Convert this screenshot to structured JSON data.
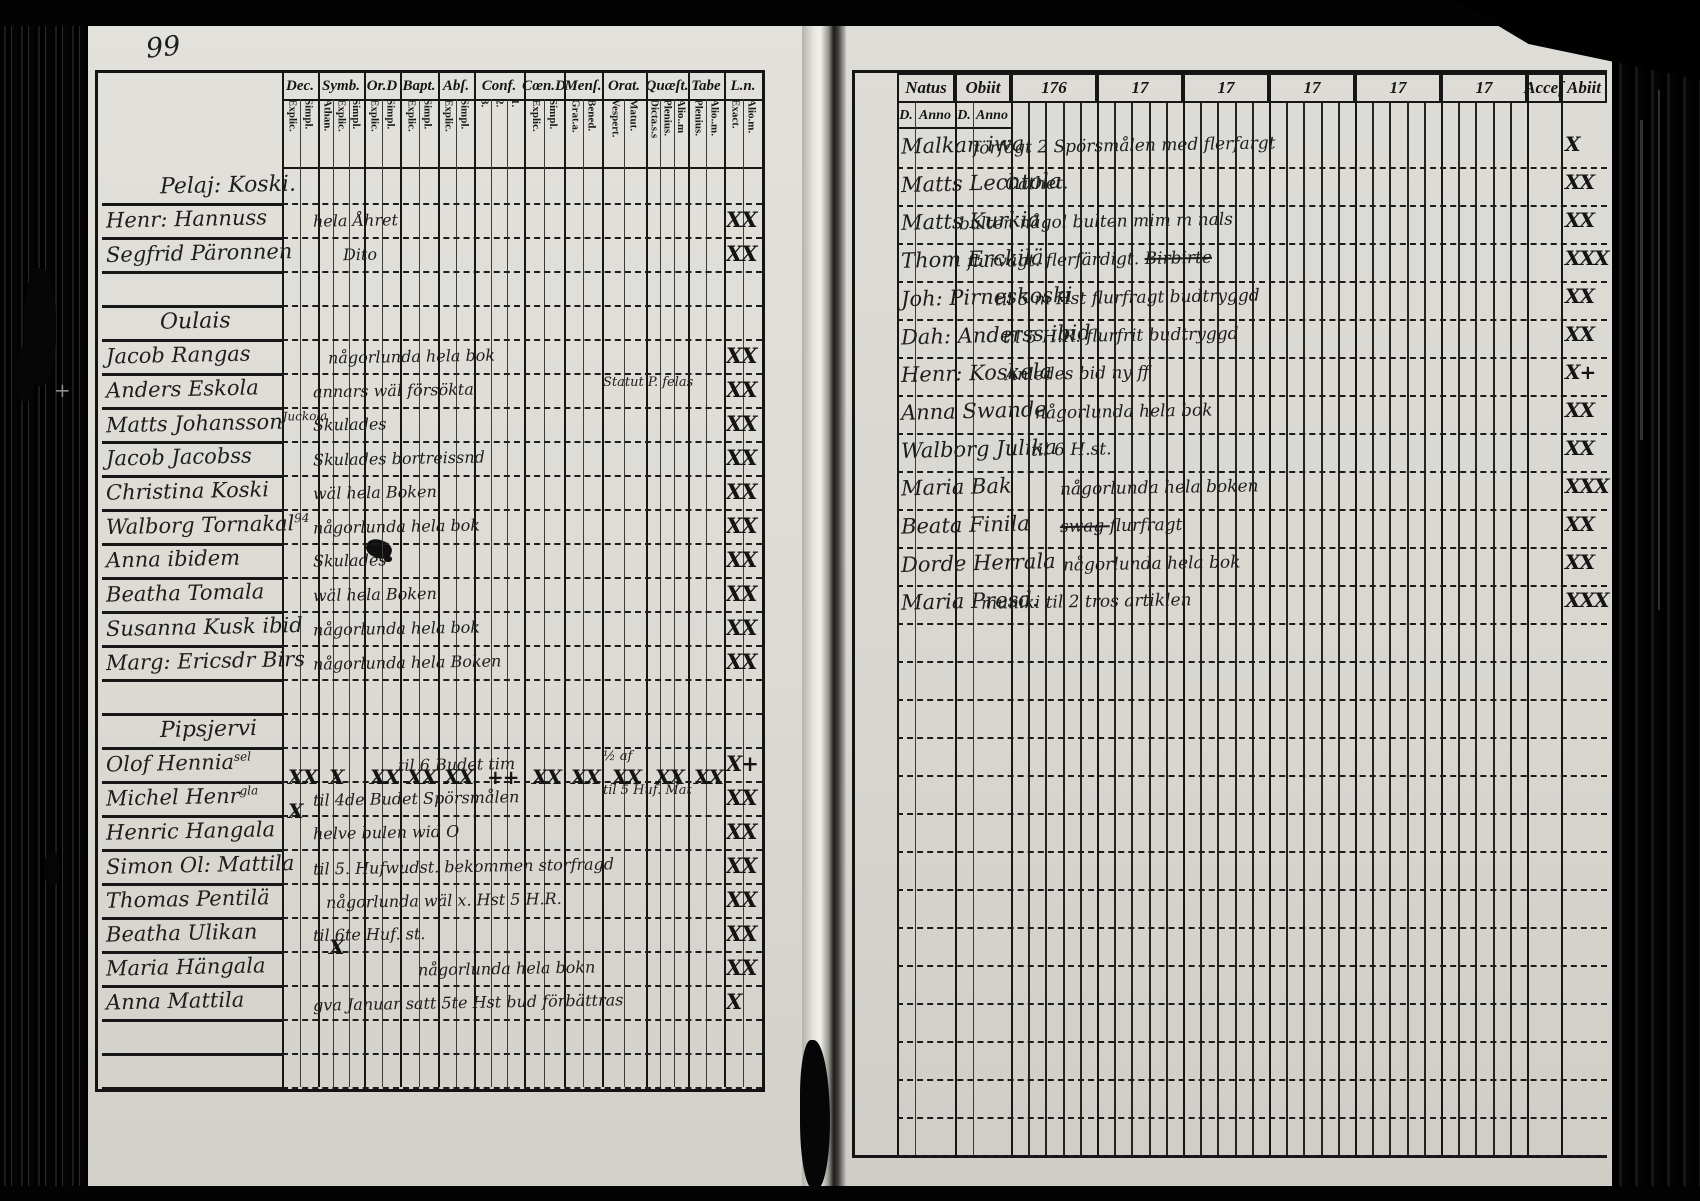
{
  "page_number": "99",
  "left_page": {
    "columns": [
      {
        "label": "Dec.",
        "sub": [
          "Explic.",
          "Simpl."
        ]
      },
      {
        "label": "Symb.",
        "sub": [
          "Athan.",
          "Explic.",
          "Simpl."
        ]
      },
      {
        "label": "Or.D",
        "sub": [
          "Explic.",
          "Simpl."
        ]
      },
      {
        "label": "Bapt.",
        "sub": [
          "Explic.",
          "Simpl."
        ]
      },
      {
        "label": "Abſ.",
        "sub": [
          "Explic.",
          "Simpl."
        ]
      },
      {
        "label": "Conf.",
        "sub": [
          "3.",
          "2.",
          "1."
        ]
      },
      {
        "label": "Cœn.D",
        "sub": [
          "Explic.",
          "Simpl."
        ]
      },
      {
        "label": "Menſ.",
        "sub": [
          "Grat.a.",
          "Bened."
        ]
      },
      {
        "label": "Orat.",
        "sub": [
          "Vespert.",
          "Matut."
        ]
      },
      {
        "label": "Quæſt.",
        "sub": [
          "Dicta.s.s",
          "Plenius.",
          "Alio..m"
        ]
      },
      {
        "label": "Tabe",
        "sub": [
          "Plenius.",
          "Alio..m."
        ]
      },
      {
        "label": "L.n.",
        "sub": [
          "Exact.",
          "Alio.m."
        ]
      }
    ],
    "rows": [
      {
        "type": "heading",
        "name": "Pelaj: Koski."
      },
      {
        "type": "entry",
        "name": "Henr: Hannuss",
        "note": [
          {
            "text": "hela Åhret"
          }
        ],
        "marks": "XX"
      },
      {
        "type": "entry",
        "name": "Segfrid Päronnen",
        "note": [
          {
            "text": "Dito"
          }
        ],
        "marks": "XX"
      },
      {
        "type": "blank"
      },
      {
        "type": "heading",
        "name": "Oulais"
      },
      {
        "type": "entry",
        "name": "Jacob Rangas",
        "note": [
          {
            "text": "någorlunda hela bok"
          }
        ],
        "marks": "XX"
      },
      {
        "type": "entry",
        "name": "Anders Eskola",
        "note": [
          {
            "text": "annars wäl försökta"
          }
        ],
        "note2": "Statut P. felas",
        "marks": "XX"
      },
      {
        "type": "entry",
        "name": "Matts Johansson",
        "sup": "Juckola",
        "note": [
          {
            "text": "Skulades"
          }
        ],
        "marks": "XX"
      },
      {
        "type": "entry",
        "name": "Jacob Jacobss",
        "note": [
          {
            "text": "Skulades  bortreissnd"
          }
        ],
        "marks": "XX"
      },
      {
        "type": "entry",
        "name": "Christina Koski",
        "note": [
          {
            "text": "wäl hela Boken"
          }
        ],
        "marks": "XX"
      },
      {
        "type": "entry",
        "name": "Walborg Tornakal",
        "sup": "94",
        "note": [
          {
            "text": "någorlunda hela bok"
          }
        ],
        "marks": "XX"
      },
      {
        "type": "entry",
        "name": "Anna ibidem",
        "note": [
          {
            "text": "Skulades"
          }
        ],
        "marks": "XX"
      },
      {
        "type": "entry",
        "name": "Beatha Tomala",
        "note": [
          {
            "text": "wäl hela Boken"
          }
        ],
        "marks": "XX"
      },
      {
        "type": "entry",
        "name": "Susanna Kusk ibid",
        "note": [
          {
            "text": "någorlunda hela bok"
          }
        ],
        "marks": "XX"
      },
      {
        "type": "entry",
        "name": "Marg: Ericsdr Birs",
        "note": [
          {
            "text": "någorlunda hela Boken"
          }
        ],
        "marks": "XX"
      },
      {
        "type": "blank"
      },
      {
        "type": "heading",
        "name": "Pipsjervi"
      },
      {
        "type": "entry",
        "name": "Olof Hennia",
        "sup": "sel",
        "note": [
          {
            "text": "til 6 Budet tim"
          }
        ],
        "note2": "½ af",
        "marks": "X+",
        "colmarks": [
          [
            0,
            "XX"
          ],
          [
            1,
            "X"
          ],
          [
            2,
            "XX"
          ],
          [
            3,
            "XX"
          ],
          [
            4,
            "XX"
          ],
          [
            5,
            "++"
          ],
          [
            6,
            "XX"
          ],
          [
            7,
            "XX"
          ],
          [
            8,
            "XX"
          ],
          [
            9,
            "XX"
          ],
          [
            10,
            "XX"
          ]
        ]
      },
      {
        "type": "entry",
        "name": "Michel Henr",
        "sup": "gla",
        "note": [
          {
            "text": "til 4de Budet Spörsmålen"
          }
        ],
        "note2": "til 5 Huf. Mat",
        "marks": "XX",
        "colmarks": [
          [
            0,
            "X"
          ]
        ]
      },
      {
        "type": "entry",
        "name": "Henric Hangala",
        "note": [
          {
            "text": "helve bulen wid O"
          }
        ],
        "marks": "XX"
      },
      {
        "type": "entry",
        "name": "Simon Ol: Mattila",
        "note": [
          {
            "text": "til 5. Hufwudst. bekommen storfragd"
          }
        ],
        "marks": "XX"
      },
      {
        "type": "entry",
        "name": "Thomas Pentilä",
        "note": [
          {
            "text": "någorlunda wäl  x. Hst 5 H.R."
          }
        ],
        "marks": "XX"
      },
      {
        "type": "entry",
        "name": "Beatha Ulikan",
        "note": [
          {
            "text": "til 6te Huf. st."
          }
        ],
        "marks": "XX",
        "colmarks": [
          [
            1,
            "X"
          ]
        ]
      },
      {
        "type": "entry",
        "name": "Maria Hängala",
        "note": [
          {
            "text": "någorlunda hela bokn"
          }
        ],
        "marks": "XX"
      },
      {
        "type": "entry",
        "name": "Anna Mattila",
        "note": [
          {
            "text": "gva Januar satt 5te Hst bud förbättras"
          }
        ],
        "marks": "X"
      },
      {
        "type": "blank"
      },
      {
        "type": "blank"
      }
    ]
  },
  "right_page": {
    "header": {
      "natus": "Natus",
      "obiit": "Obiit",
      "d": "D.",
      "anno": "Anno",
      "years": [
        "176",
        "17",
        "17",
        "17",
        "17",
        "17"
      ],
      "accel": "Acceſ",
      "abit": "Abiit"
    },
    "rows": [
      {
        "name": "Malkan iwa",
        "note": [
          {
            "text": "förfögt 2 Spörsmålen med flerfargt"
          }
        ],
        "marks": "X"
      },
      {
        "name": "Matts Lechtola",
        "note": [
          {
            "text": "Cathet."
          }
        ],
        "marks": "XX"
      },
      {
        "name": "Matts Kurkia",
        "note": [
          {
            "text": "bulten   någol bulten mim m nals"
          }
        ],
        "marks": "XX"
      },
      {
        "name": "Thom Erckilä",
        "note": [
          {
            "text": "flurvagt.  flerfärdigt. "
          },
          {
            "text": "Birbirte",
            "struck": true
          }
        ],
        "marks": "XXX"
      },
      {
        "name": "Joh: Pirneskoski",
        "note": [
          {
            "text": "til 5 m Hst flurfragt   budtryggd"
          }
        ],
        "marks": "XX"
      },
      {
        "name": "Dah: Anderss ibid",
        "note": [
          {
            "text": "til 5 H.R. flurfrit   budtryggd"
          }
        ],
        "marks": "XX"
      },
      {
        "name": "Henr: Koskela",
        "note": [
          {
            "text": "Anledes   bid ny ff"
          }
        ],
        "marks": "X+"
      },
      {
        "name": "Anna Swande",
        "note": [
          {
            "text": "någorlunda hela bok"
          }
        ],
        "marks": "XX"
      },
      {
        "name": "Walborg Julika",
        "note": [
          {
            "text": "til 6 H.st."
          }
        ],
        "marks": "XX"
      },
      {
        "name": "Maria Bak",
        "note": [
          {
            "text": "någorlunda hela boken"
          }
        ],
        "marks": "XXX"
      },
      {
        "name": "Beata Finila",
        "note": [
          {
            "text": "swag ",
            "struck": true
          },
          {
            "text": "flurfragt"
          }
        ],
        "marks": "XX"
      },
      {
        "name": "Dorde Herrala",
        "note": [
          {
            "text": "någorlunda hela bok"
          }
        ],
        "marks": "XX"
      },
      {
        "name": "Maria Presd.",
        "note": [
          {
            "text": "muniki til 2 tros artiklen"
          }
        ],
        "marks": "XXX"
      }
    ]
  }
}
